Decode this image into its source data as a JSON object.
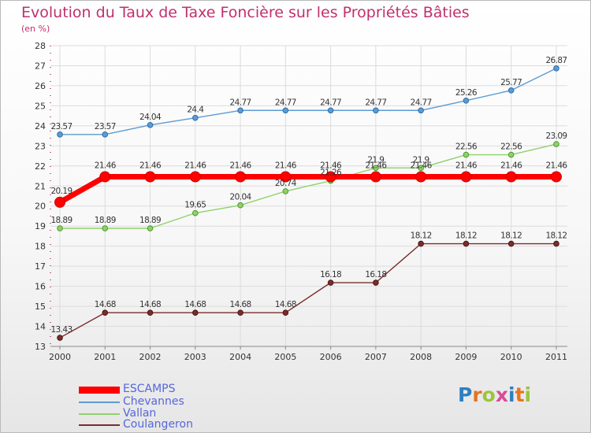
{
  "chart_data": {
    "type": "line",
    "title": "Evolution du Taux de Taxe Foncière sur les Propriétés Bâties",
    "subtitle": "(en %)",
    "x": [
      "2000",
      "2001",
      "2002",
      "2003",
      "2004",
      "2005",
      "2006",
      "2007",
      "2008",
      "2009",
      "2010",
      "2011"
    ],
    "ylim": [
      13,
      28
    ],
    "yticks": [
      "13",
      "14",
      "15",
      "16",
      "17",
      "18",
      "19",
      "20",
      "21",
      "22",
      "23",
      "24",
      "25",
      "26",
      "27",
      "28"
    ],
    "grid": true,
    "legend_position": "bottom-left",
    "series": [
      {
        "name": "ESCAMPS",
        "color": "#ff0000",
        "values": [
          20.19,
          21.46,
          21.46,
          21.46,
          21.46,
          21.46,
          21.46,
          21.46,
          21.46,
          21.46,
          21.46,
          21.46
        ],
        "labels": [
          "20.19",
          "21.46",
          "21.46",
          "21.46",
          "21.46",
          "21.46",
          "21.46",
          "21.46",
          "21.46",
          "21.46",
          "21.46",
          "21.46"
        ]
      },
      {
        "name": "Chevannes",
        "color": "#5b9bd5",
        "values": [
          23.57,
          23.57,
          24.04,
          24.4,
          24.77,
          24.77,
          24.77,
          24.77,
          24.77,
          25.26,
          25.77,
          26.87
        ],
        "labels": [
          "23.57",
          "23.57",
          "24.04",
          "24.4",
          "24.77",
          "24.77",
          "24.77",
          "24.77",
          "24.77",
          "25.26",
          "25.77",
          "26.87"
        ]
      },
      {
        "name": "Vallan",
        "color": "#8fd16a",
        "values": [
          18.89,
          18.89,
          18.89,
          19.65,
          20.04,
          20.74,
          21.26,
          21.9,
          21.9,
          22.56,
          22.56,
          23.09
        ],
        "labels": [
          "18.89",
          "18.89",
          "18.89",
          "19.65",
          "20.04",
          "20.74",
          "21.26",
          "21.9",
          "21.9",
          "22.56",
          "22.56",
          "23.09"
        ]
      },
      {
        "name": "Coulangeron",
        "color": "#7b2c2c",
        "values": [
          13.43,
          14.68,
          14.68,
          14.68,
          14.68,
          14.68,
          16.18,
          16.18,
          18.12,
          18.12,
          18.12,
          18.12
        ],
        "labels": [
          "13.43",
          "14.68",
          "14.68",
          "14.68",
          "14.68",
          "14.68",
          "16.18",
          "16.18",
          "18.12",
          "18.12",
          "18.12",
          "18.12"
        ]
      }
    ]
  },
  "legend": {
    "items": [
      {
        "label": "ESCAMPS",
        "color": "#ff0000",
        "text_color": "#5566dd"
      },
      {
        "label": "Chevannes",
        "color": "#5b9bd5",
        "text_color": "#5566dd"
      },
      {
        "label": "Vallan",
        "color": "#8fd16a",
        "text_color": "#5566dd"
      },
      {
        "label": "Coulangeron",
        "color": "#7b2c2c",
        "text_color": "#5566dd"
      }
    ]
  },
  "logo": {
    "text": "Proxiti",
    "letter_colors": [
      "#2d7fc1",
      "#e8731f",
      "#9ac53d",
      "#d94b98",
      "#2d7fc1",
      "#e8731f",
      "#9ac53d"
    ]
  }
}
